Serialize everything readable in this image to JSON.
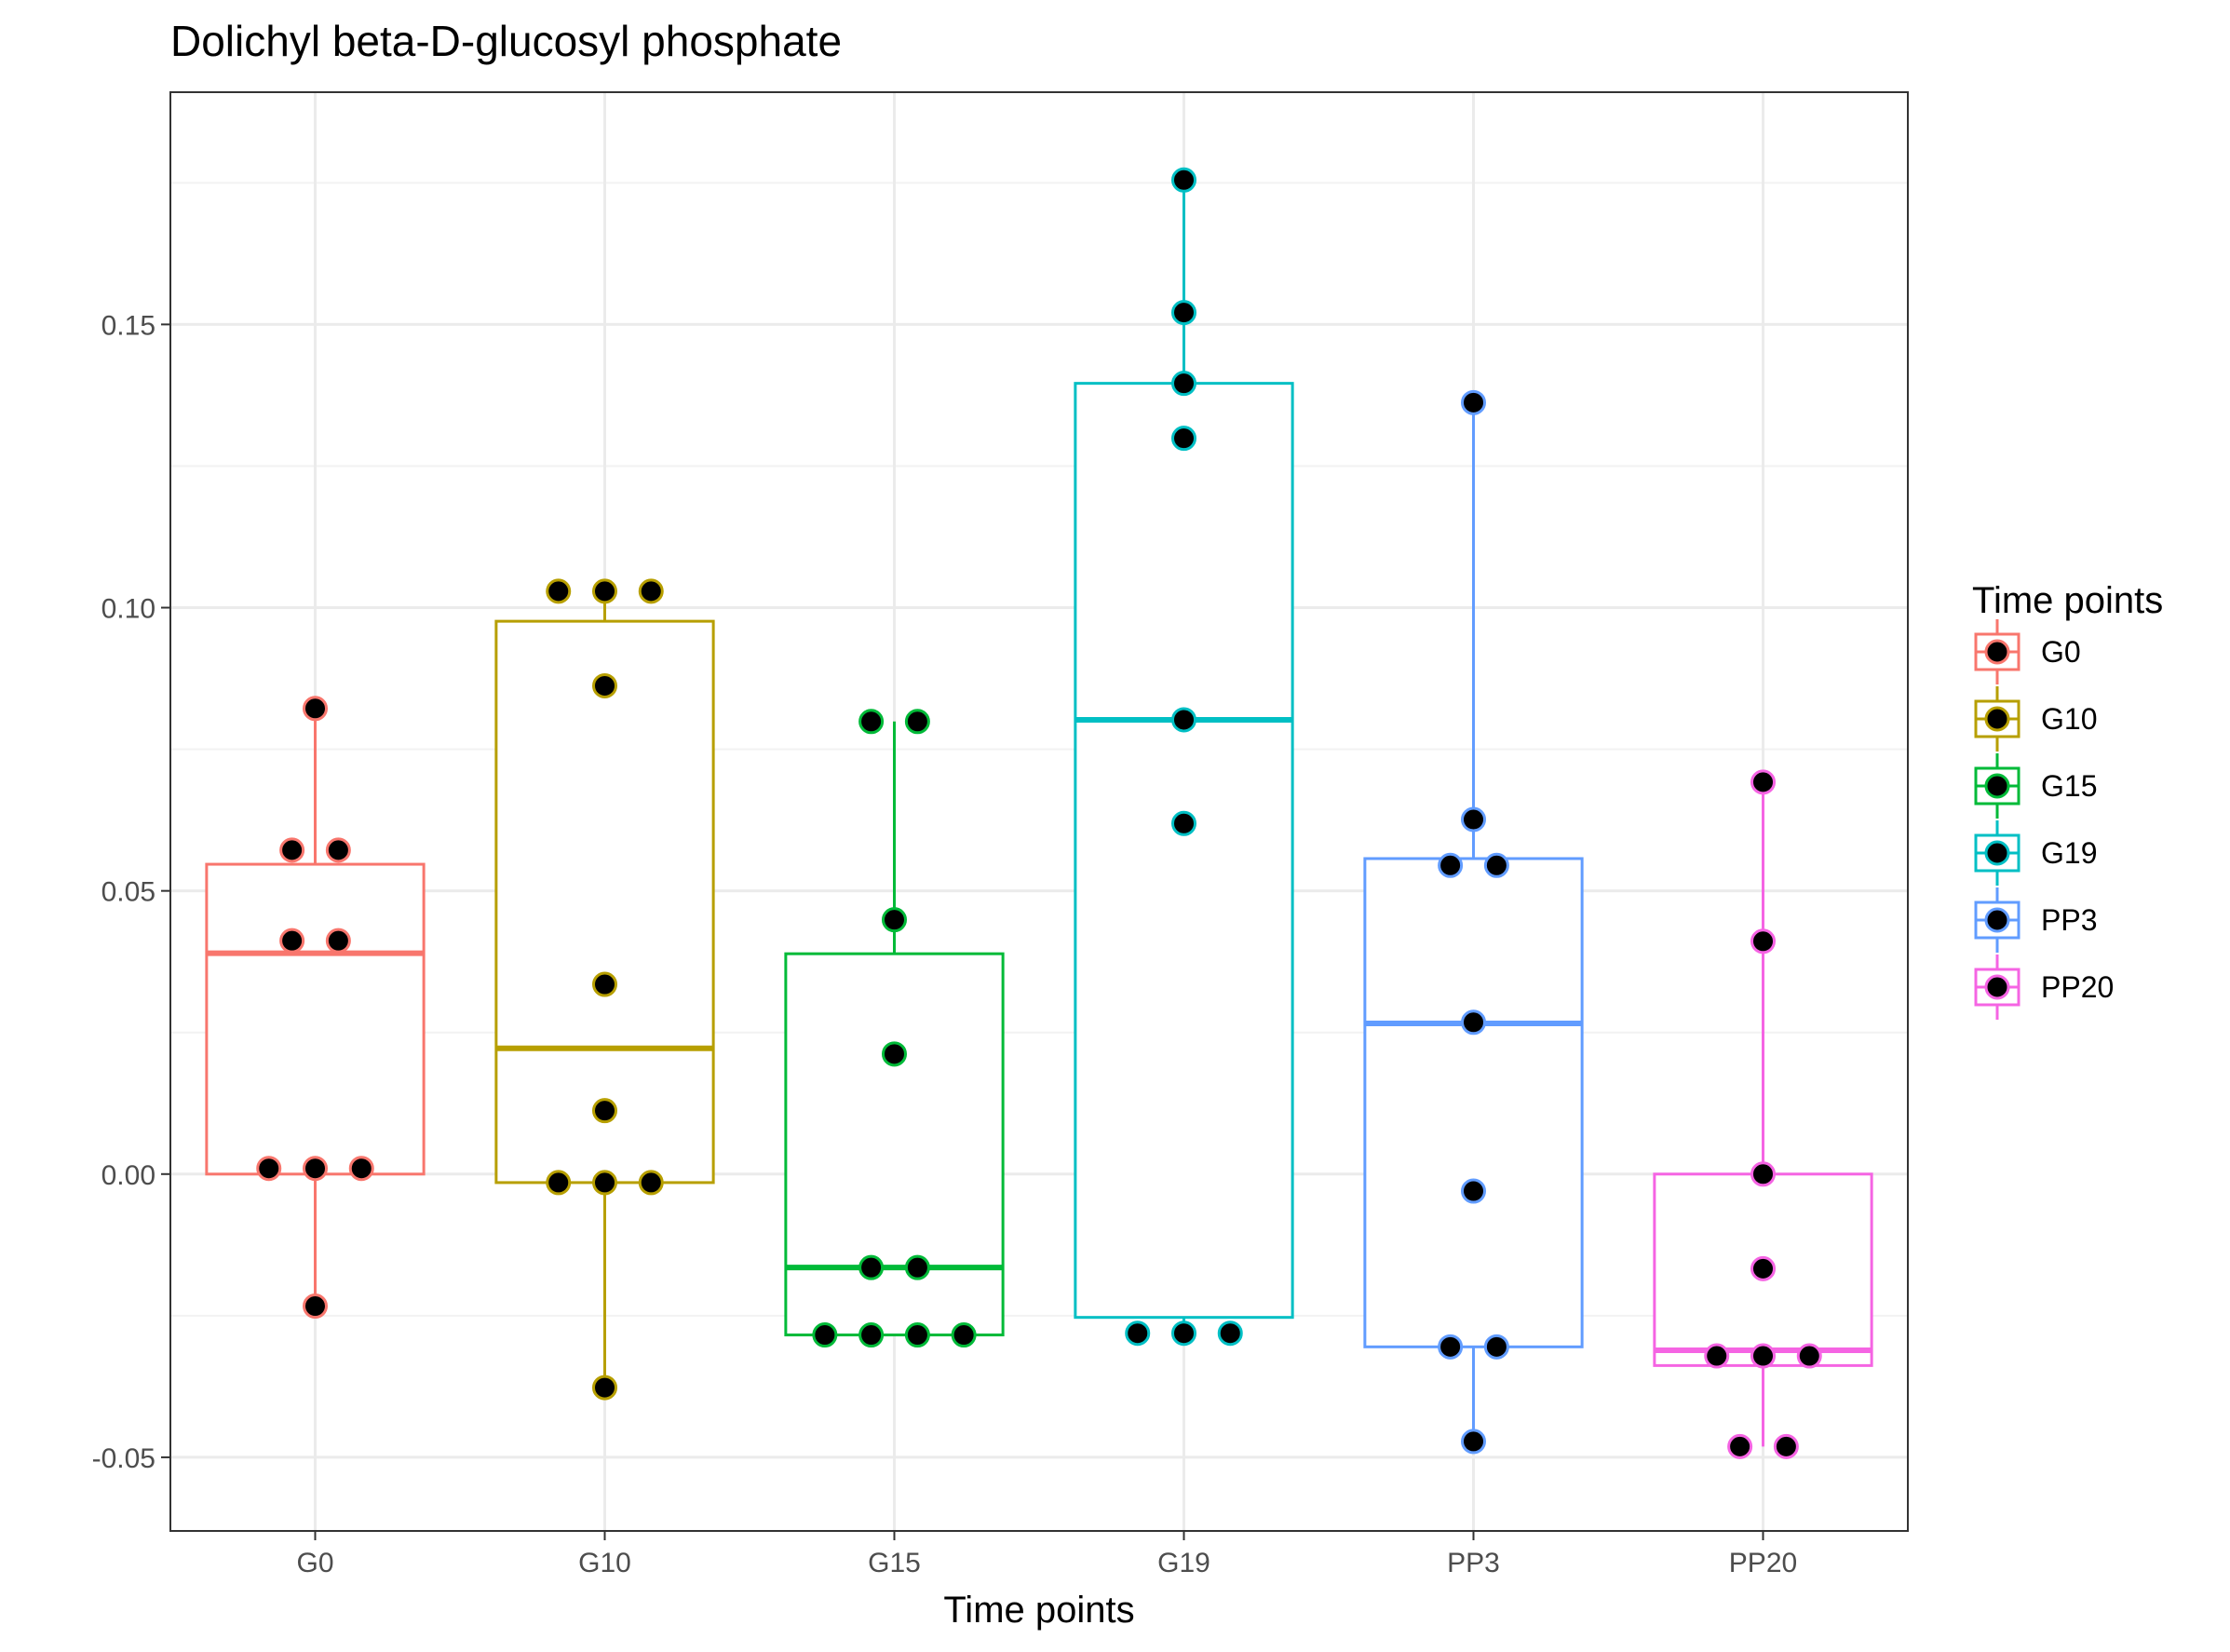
{
  "chart_data": {
    "type": "box",
    "title": "Dolichyl beta-D-glucosyl phosphate",
    "xlabel": "Time points",
    "ylabel": "",
    "ylim": [
      -0.063,
      0.191
    ],
    "yticks": [
      -0.05,
      0.0,
      0.05,
      0.1,
      0.15
    ],
    "ytick_labels": [
      "-0.05",
      "0.00",
      "0.05",
      "0.10",
      "0.15"
    ],
    "grid": true,
    "legend": {
      "title": "Time points",
      "position": "right"
    },
    "categories": [
      "G0",
      "G10",
      "G15",
      "G19",
      "PP3",
      "PP20"
    ],
    "series": [
      {
        "name": "G0",
        "color": "#F8766D",
        "box": {
          "min": -0.0233,
          "q1": 0.0,
          "median": 0.039,
          "q3": 0.0547,
          "max": 0.0822
        },
        "points": [
          0.0822,
          0.0572,
          0.0572,
          0.0412,
          0.0412,
          0.001,
          0.001,
          0.001,
          -0.0233
        ],
        "dx": [
          0,
          -0.08,
          0.08,
          -0.08,
          0.08,
          -0.16,
          0,
          0.16,
          0
        ]
      },
      {
        "name": "G10",
        "color": "#B79F00",
        "box": {
          "min": -0.0377,
          "q1": -0.0015,
          "median": 0.0222,
          "q3": 0.0976,
          "max": 0.1029
        },
        "points": [
          0.1029,
          0.1029,
          0.1029,
          0.0862,
          0.0335,
          0.0112,
          -0.0015,
          -0.0015,
          -0.0015,
          -0.0377
        ],
        "dx": [
          -0.16,
          0,
          0.16,
          0,
          0,
          0,
          -0.16,
          0,
          0.16,
          0
        ]
      },
      {
        "name": "G15",
        "color": "#00BA38",
        "box": {
          "min": -0.0284,
          "q1": -0.0284,
          "median": -0.0165,
          "q3": 0.0389,
          "max": 0.0799
        },
        "points": [
          0.0799,
          0.0799,
          0.0449,
          0.0212,
          -0.0165,
          -0.0165,
          -0.0284,
          -0.0284,
          -0.0284,
          -0.0284
        ],
        "dx": [
          -0.08,
          0.08,
          0,
          0,
          -0.08,
          0.08,
          -0.24,
          -0.08,
          0.08,
          0.24
        ]
      },
      {
        "name": "G19",
        "color": "#00BFC4",
        "box": {
          "min": -0.0281,
          "q1": -0.0253,
          "median": 0.0802,
          "q3": 0.1396,
          "max": 0.1755
        },
        "points": [
          0.1755,
          0.1521,
          0.1396,
          0.1299,
          0.0802,
          0.0619,
          -0.0281,
          -0.0281,
          -0.0281
        ],
        "dx": [
          0,
          0,
          0,
          0,
          0,
          0,
          -0.16,
          0,
          0.16
        ]
      },
      {
        "name": "PP3",
        "color": "#619CFF",
        "box": {
          "min": -0.0472,
          "q1": -0.0305,
          "median": 0.0266,
          "q3": 0.0557,
          "max": 0.1362
        },
        "points": [
          0.1362,
          0.0626,
          0.0545,
          0.0545,
          0.0268,
          -0.003,
          -0.0305,
          -0.0305,
          -0.0472
        ],
        "dx": [
          0,
          0,
          -0.08,
          0.08,
          0,
          0,
          -0.08,
          0.08,
          0
        ]
      },
      {
        "name": "PP20",
        "color": "#F564E3",
        "box": {
          "min": -0.0481,
          "q1": -0.0338,
          "median": -0.0311,
          "q3": 0.0,
          "max": 0.0692
        },
        "points": [
          0.0692,
          0.0411,
          0.0,
          -0.0167,
          -0.0321,
          -0.0321,
          -0.0321,
          -0.0481,
          -0.0481
        ],
        "dx": [
          0,
          0,
          0,
          0,
          -0.16,
          0,
          0.16,
          -0.08,
          0.08
        ]
      }
    ]
  }
}
